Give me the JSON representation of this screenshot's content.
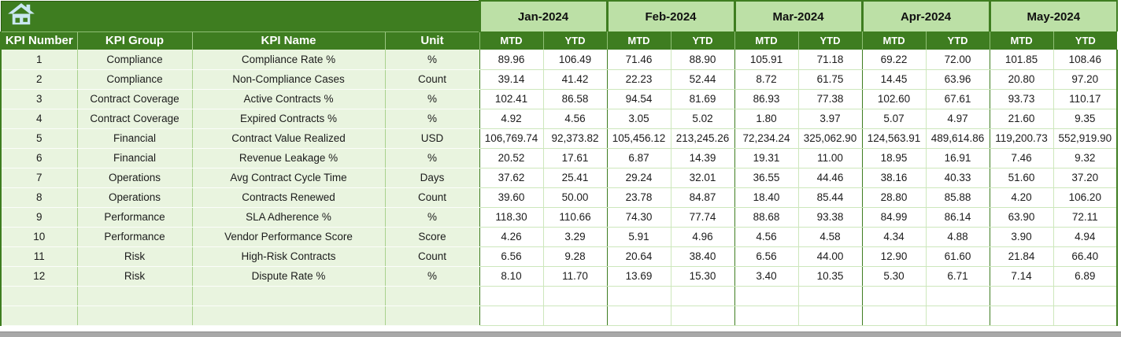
{
  "months": [
    "Jan-2024",
    "Feb-2024",
    "Mar-2024",
    "Apr-2024",
    "May-2024"
  ],
  "subheaders": [
    "MTD",
    "YTD"
  ],
  "columns": [
    "KPI Number",
    "KPI Group",
    "KPI Name",
    "Unit"
  ],
  "rows": [
    {
      "kpi_number": "1",
      "group": "Compliance",
      "name": "Compliance Rate %",
      "unit": "%",
      "values": [
        "89.96",
        "106.49",
        "71.46",
        "88.90",
        "105.91",
        "71.18",
        "69.22",
        "72.00",
        "101.85",
        "108.46"
      ]
    },
    {
      "kpi_number": "2",
      "group": "Compliance",
      "name": "Non-Compliance Cases",
      "unit": "Count",
      "values": [
        "39.14",
        "41.42",
        "22.23",
        "52.44",
        "8.72",
        "61.75",
        "14.45",
        "63.96",
        "20.80",
        "97.20"
      ]
    },
    {
      "kpi_number": "3",
      "group": "Contract Coverage",
      "name": "Active Contracts %",
      "unit": "%",
      "values": [
        "102.41",
        "86.58",
        "94.54",
        "81.69",
        "86.93",
        "77.38",
        "102.60",
        "67.61",
        "93.73",
        "110.17"
      ]
    },
    {
      "kpi_number": "4",
      "group": "Contract Coverage",
      "name": "Expired Contracts %",
      "unit": "%",
      "values": [
        "4.92",
        "4.56",
        "3.05",
        "5.02",
        "1.80",
        "3.97",
        "5.07",
        "4.97",
        "21.60",
        "9.35"
      ]
    },
    {
      "kpi_number": "5",
      "group": "Financial",
      "name": "Contract Value Realized",
      "unit": "USD",
      "values": [
        "106,769.74",
        "92,373.82",
        "105,456.12",
        "213,245.26",
        "72,234.24",
        "325,062.90",
        "124,563.91",
        "489,614.86",
        "119,200.73",
        "552,919.90"
      ]
    },
    {
      "kpi_number": "6",
      "group": "Financial",
      "name": "Revenue Leakage %",
      "unit": "%",
      "values": [
        "20.52",
        "17.61",
        "6.87",
        "14.39",
        "19.31",
        "11.00",
        "18.95",
        "16.91",
        "7.46",
        "9.32"
      ]
    },
    {
      "kpi_number": "7",
      "group": "Operations",
      "name": "Avg Contract Cycle Time",
      "unit": "Days",
      "values": [
        "37.62",
        "25.41",
        "29.24",
        "32.01",
        "36.55",
        "44.46",
        "38.16",
        "40.33",
        "51.60",
        "37.20"
      ]
    },
    {
      "kpi_number": "8",
      "group": "Operations",
      "name": "Contracts Renewed",
      "unit": "Count",
      "values": [
        "39.60",
        "50.00",
        "23.78",
        "84.87",
        "18.40",
        "85.44",
        "28.80",
        "85.88",
        "4.20",
        "106.20"
      ]
    },
    {
      "kpi_number": "9",
      "group": "Performance",
      "name": "SLA Adherence %",
      "unit": "%",
      "values": [
        "118.30",
        "110.66",
        "74.30",
        "77.74",
        "88.68",
        "93.38",
        "84.99",
        "86.14",
        "63.90",
        "72.11"
      ]
    },
    {
      "kpi_number": "10",
      "group": "Performance",
      "name": "Vendor Performance Score",
      "unit": "Score",
      "values": [
        "4.26",
        "3.29",
        "5.91",
        "4.96",
        "4.56",
        "4.58",
        "4.34",
        "4.88",
        "3.90",
        "4.94"
      ]
    },
    {
      "kpi_number": "11",
      "group": "Risk",
      "name": "High-Risk Contracts",
      "unit": "Count",
      "values": [
        "6.56",
        "9.28",
        "20.64",
        "38.40",
        "6.56",
        "44.00",
        "12.90",
        "61.60",
        "21.84",
        "66.40"
      ]
    },
    {
      "kpi_number": "12",
      "group": "Risk",
      "name": "Dispute Rate %",
      "unit": "%",
      "values": [
        "8.10",
        "11.70",
        "13.69",
        "15.30",
        "3.40",
        "10.35",
        "5.30",
        "6.71",
        "7.14",
        "6.89"
      ]
    }
  ],
  "empty_row_count": 2,
  "colors": {
    "header_dark_green": "#3E7D20",
    "month_light_green": "#BCE0A6",
    "label_cell_green": "#E9F4DF",
    "grid_line_green": "#CDE7BC",
    "home_icon_blue": "#C9E7F0",
    "scrollbar_gray": "#A8A8A8"
  }
}
